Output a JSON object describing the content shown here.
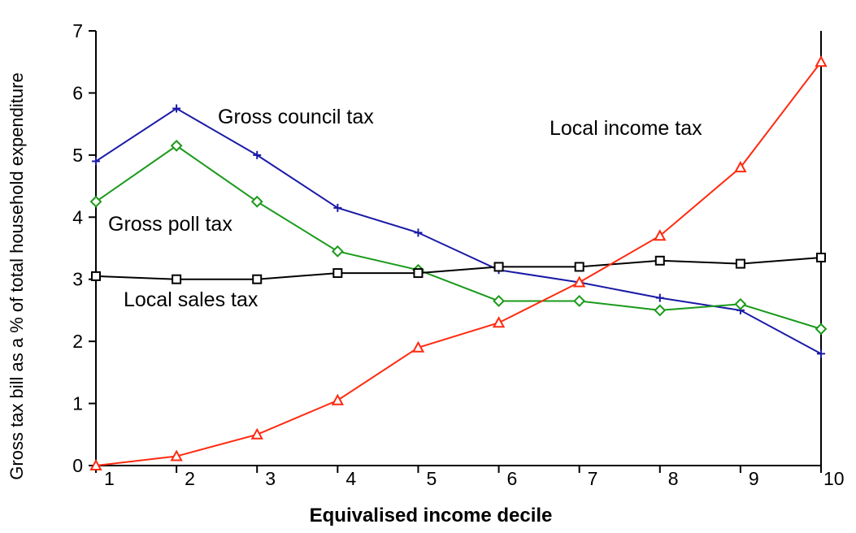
{
  "chart_data": {
    "type": "line",
    "xlabel": "Equivalised income decile",
    "ylabel": "Gross tax bill as a % of total household expenditure",
    "x": [
      1,
      2,
      3,
      4,
      5,
      6,
      7,
      8,
      9,
      10
    ],
    "xlim": [
      1,
      10
    ],
    "ylim": [
      0,
      7
    ],
    "yticks": [
      0,
      1,
      2,
      3,
      4,
      5,
      6,
      7
    ],
    "grid": false,
    "legend": "none",
    "series": [
      {
        "name": "Gross council tax",
        "color": "#1a1aa6",
        "marker": "plus",
        "values": [
          4.9,
          5.75,
          5.0,
          4.15,
          3.75,
          3.15,
          2.95,
          2.7,
          2.5,
          1.8
        ]
      },
      {
        "name": "Gross poll tax",
        "color": "#1a9a1a",
        "marker": "diamond",
        "values": [
          4.25,
          5.15,
          4.25,
          3.45,
          3.15,
          2.65,
          2.65,
          2.5,
          2.6,
          2.2
        ]
      },
      {
        "name": "Local sales tax",
        "color": "#000000",
        "marker": "square",
        "values": [
          3.05,
          3.0,
          3.0,
          3.1,
          3.1,
          3.2,
          3.2,
          3.3,
          3.25,
          3.35
        ]
      },
      {
        "name": "Local income tax",
        "color": "#ff2a10",
        "marker": "triangle",
        "values": [
          0.0,
          0.15,
          0.5,
          1.05,
          1.9,
          2.3,
          2.95,
          3.7,
          4.8,
          6.5
        ]
      }
    ]
  }
}
